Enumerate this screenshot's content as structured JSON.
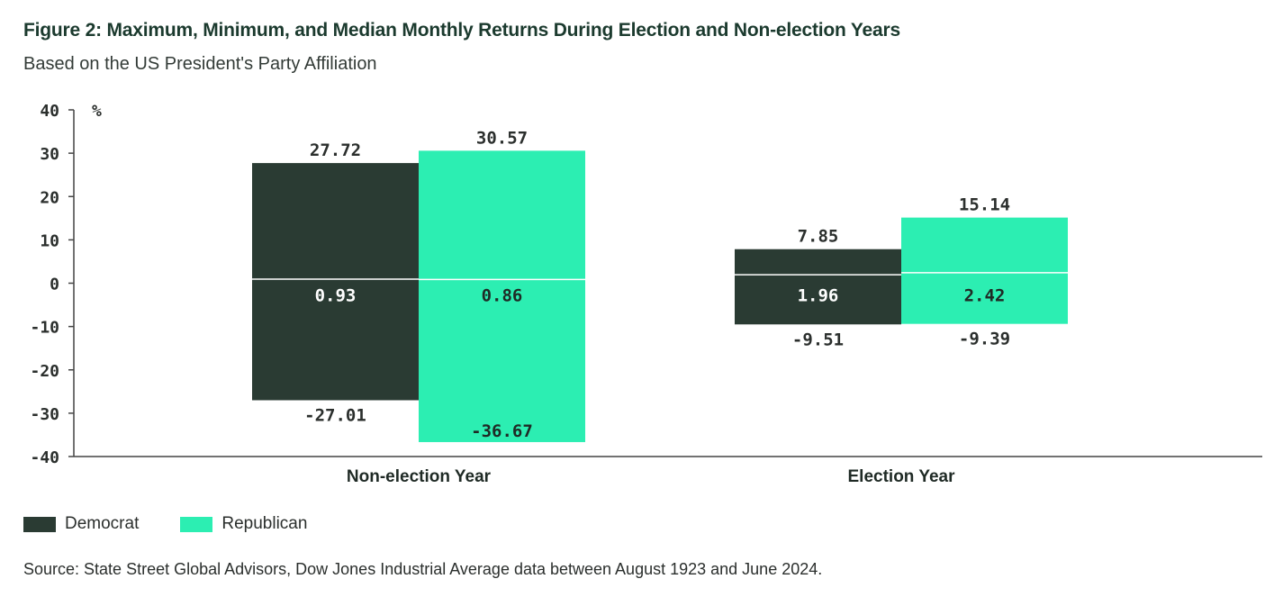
{
  "title": "Figure 2: Maximum, Minimum, and Median Monthly Returns During Election and Non-election Years",
  "subtitle": "Based on the US President's Party Affiliation",
  "source": "Source: State Street Global Advisors, Dow Jones Industrial Average data between August 1923 and June 2024.",
  "colors": {
    "Democrat": "#2a3b33",
    "Republican": "#2ceeb2"
  },
  "chart_data": {
    "type": "bar",
    "subtype": "floating-range-with-median",
    "categories": [
      "Non-election Year",
      "Election Year"
    ],
    "yunit": "%",
    "ylim": [
      -40,
      40
    ],
    "yticks": [
      -40,
      -30,
      -20,
      -10,
      0,
      10,
      20,
      30,
      40
    ],
    "grid": false,
    "legend_position": "bottom-left",
    "series": [
      {
        "name": "Democrat",
        "max": [
          27.72,
          7.85
        ],
        "min": [
          -27.01,
          -9.51
        ],
        "median": [
          0.93,
          1.96
        ],
        "max_labels": [
          "27.72",
          "7.85"
        ],
        "min_labels": [
          "-27.01",
          "-9.51"
        ],
        "median_labels": [
          "0.93",
          "1.96"
        ]
      },
      {
        "name": "Republican",
        "max": [
          30.57,
          15.14
        ],
        "min": [
          -36.67,
          -9.39
        ],
        "median": [
          0.86,
          2.42
        ],
        "max_labels": [
          "30.57",
          "15.14"
        ],
        "min_labels": [
          "-36.67",
          "-9.39"
        ],
        "median_labels": [
          "0.86",
          "2.42"
        ]
      }
    ]
  }
}
